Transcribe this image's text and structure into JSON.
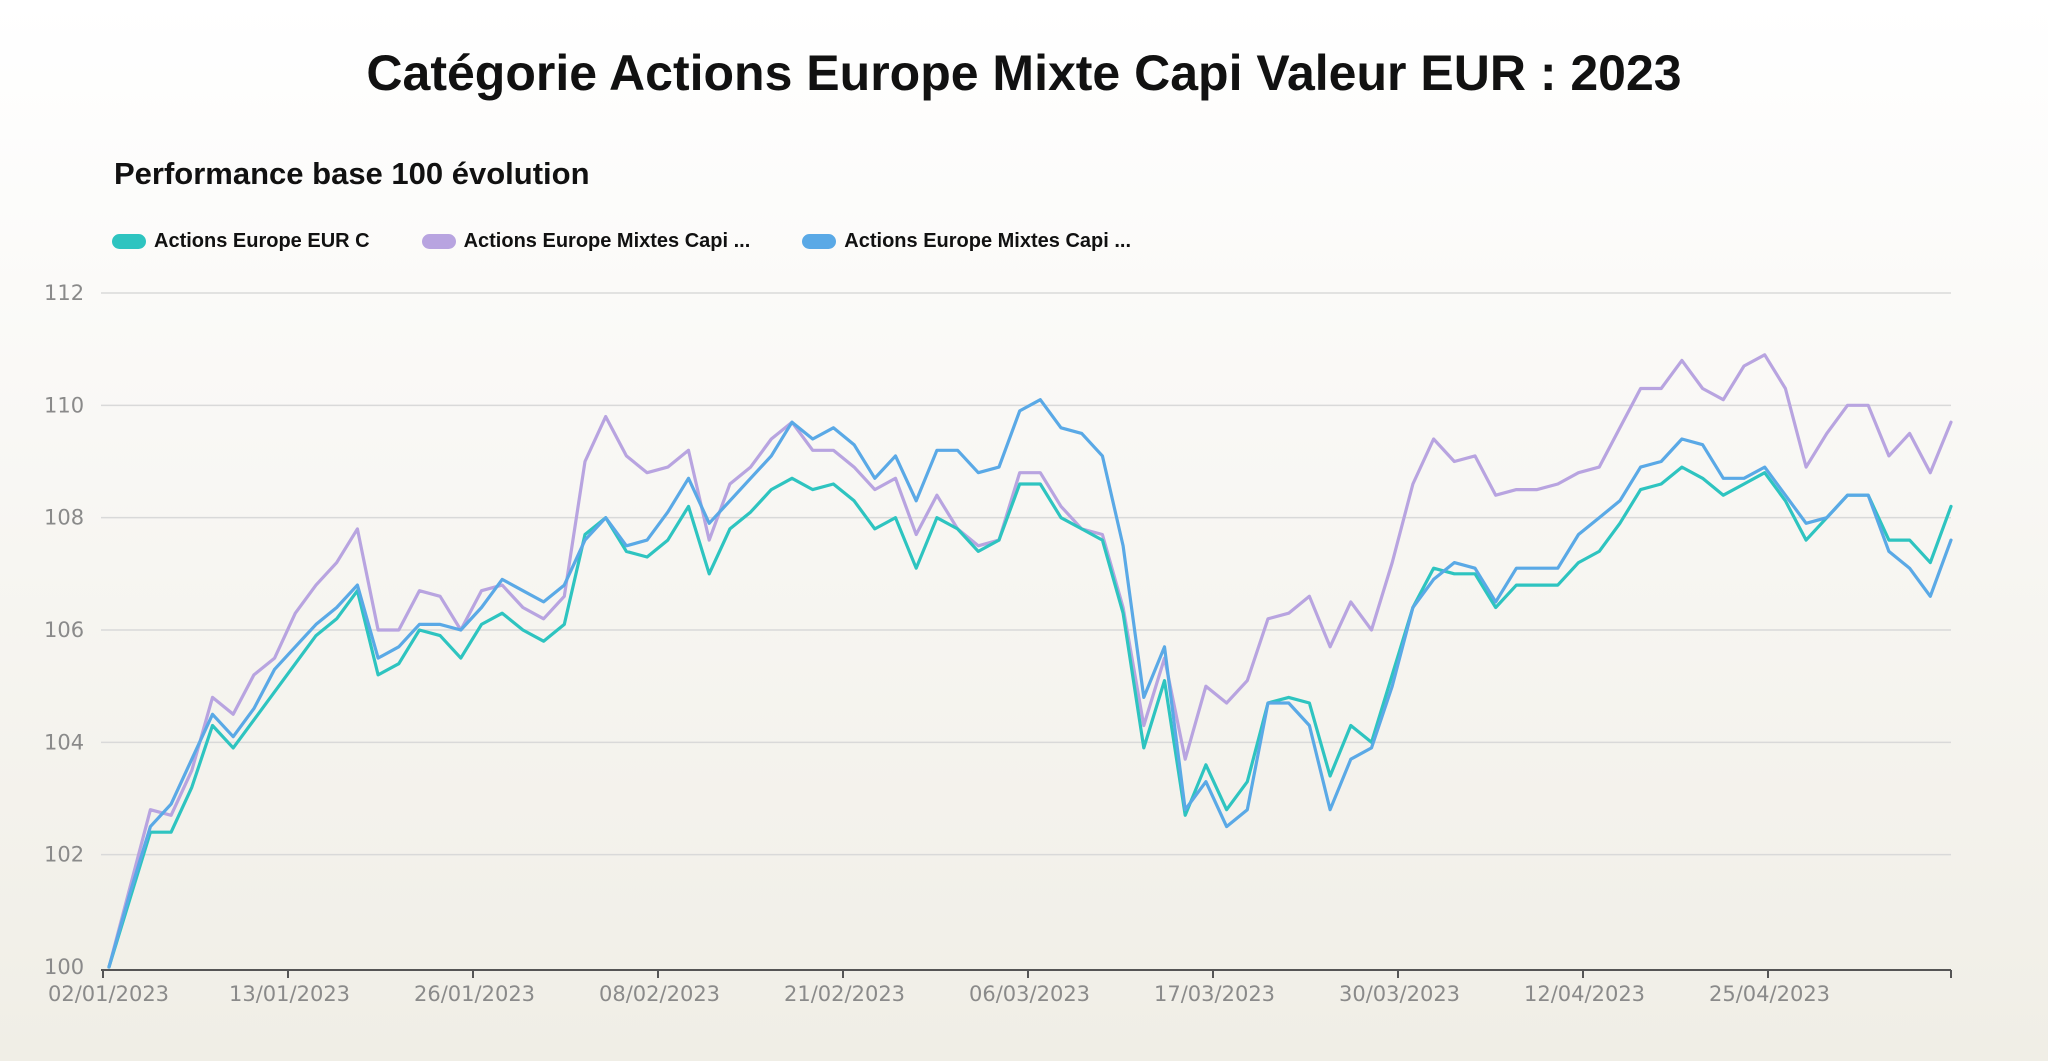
{
  "title": "Catégorie Actions Europe Mixte Capi Valeur EUR : 2023",
  "chart_data": {
    "type": "line",
    "subtitle": "Performance base 100 évolution",
    "xlabel": "",
    "ylabel": "",
    "ylim": [
      100,
      112
    ],
    "yticks": [
      "100",
      "102",
      "104",
      "106",
      "108",
      "110",
      "112"
    ],
    "xticks": [
      "02/01/2023",
      "13/01/2023",
      "26/01/2023",
      "08/02/2023",
      "21/02/2023",
      "06/03/2023",
      "17/03/2023",
      "30/03/2023",
      "12/04/2023",
      "25/04/2023"
    ],
    "grid": true,
    "legend_position": "top-left",
    "colors": {
      "teal": "#2ec4c0",
      "purple": "#b8a4e0",
      "blue": "#5aa9e6"
    },
    "series": [
      {
        "name": "Actions Europe EUR C",
        "color": "#2ec4c0",
        "values": [
          100,
          101.2,
          102.4,
          102.4,
          103.2,
          104.3,
          103.9,
          104.4,
          104.9,
          105.4,
          105.9,
          106.2,
          106.7,
          105.2,
          105.4,
          106.0,
          105.9,
          105.5,
          106.1,
          106.3,
          106.0,
          105.8,
          106.1,
          107.7,
          108.0,
          107.4,
          107.3,
          107.6,
          108.2,
          107.0,
          107.8,
          108.1,
          108.5,
          108.7,
          108.5,
          108.6,
          108.3,
          107.8,
          108.0,
          107.1,
          108.0,
          107.8,
          107.4,
          107.6,
          108.6,
          108.6,
          108.0,
          107.8,
          107.6,
          106.3,
          103.9,
          105.1,
          102.7,
          103.6,
          102.8,
          103.3,
          104.7,
          104.8,
          104.7,
          103.4,
          104.3,
          104.0,
          105.2,
          106.4,
          107.1,
          107.0,
          107.0,
          106.4,
          106.8,
          106.8,
          106.8,
          107.2,
          107.4,
          107.9,
          108.5,
          108.6,
          108.9,
          108.7,
          108.4,
          108.6,
          108.8,
          108.3,
          107.6,
          108.0,
          108.4,
          108.4,
          107.6,
          107.6,
          107.2,
          108.2
        ]
      },
      {
        "name": "Actions Europe Mixtes Capi ...",
        "color": "#b8a4e0",
        "values": [
          100,
          101.4,
          102.8,
          102.7,
          103.5,
          104.8,
          104.5,
          105.2,
          105.5,
          106.3,
          106.8,
          107.2,
          107.8,
          106.0,
          106.0,
          106.7,
          106.6,
          106.0,
          106.7,
          106.8,
          106.4,
          106.2,
          106.6,
          109.0,
          109.8,
          109.1,
          108.8,
          108.9,
          109.2,
          107.6,
          108.6,
          108.9,
          109.4,
          109.7,
          109.2,
          109.2,
          108.9,
          108.5,
          108.7,
          107.7,
          108.4,
          107.8,
          107.5,
          107.6,
          108.8,
          108.8,
          108.2,
          107.8,
          107.7,
          106.4,
          104.3,
          105.5,
          103.7,
          105.0,
          104.7,
          105.1,
          106.2,
          106.3,
          106.6,
          105.7,
          106.5,
          106.0,
          107.2,
          108.6,
          109.4,
          109.0,
          109.1,
          108.4,
          108.5,
          108.5,
          108.6,
          108.8,
          108.9,
          109.6,
          110.3,
          110.3,
          110.8,
          110.3,
          110.1,
          110.7,
          110.9,
          110.3,
          108.9,
          109.5,
          110.0,
          110.0,
          109.1,
          109.5,
          108.8,
          109.7
        ]
      },
      {
        "name": "Actions Europe Mixtes Capi ...",
        "color": "#5aa9e6",
        "values": [
          100,
          101.3,
          102.5,
          102.9,
          103.7,
          104.5,
          104.1,
          104.6,
          105.3,
          105.7,
          106.1,
          106.4,
          106.8,
          105.5,
          105.7,
          106.1,
          106.1,
          106.0,
          106.4,
          106.9,
          106.7,
          106.5,
          106.8,
          107.6,
          108.0,
          107.5,
          107.6,
          108.1,
          108.7,
          107.9,
          108.3,
          108.7,
          109.1,
          109.7,
          109.4,
          109.6,
          109.3,
          108.7,
          109.1,
          108.3,
          109.2,
          109.2,
          108.8,
          108.9,
          109.9,
          110.1,
          109.6,
          109.5,
          109.1,
          107.5,
          104.8,
          105.7,
          102.8,
          103.3,
          102.5,
          102.8,
          104.7,
          104.7,
          104.3,
          102.8,
          103.7,
          103.9,
          105.0,
          106.4,
          106.9,
          107.2,
          107.1,
          106.5,
          107.1,
          107.1,
          107.1,
          107.7,
          108.0,
          108.3,
          108.9,
          109.0,
          109.4,
          109.3,
          108.7,
          108.7,
          108.9,
          108.4,
          107.9,
          108.0,
          108.4,
          108.4,
          107.4,
          107.1,
          106.6,
          107.6
        ]
      }
    ]
  }
}
